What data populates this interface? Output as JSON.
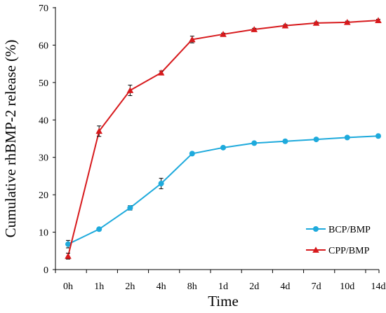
{
  "chart_data": {
    "type": "line",
    "title": "",
    "xlabel": "Time",
    "ylabel": "Cumulative rhBMP-2 release (%)",
    "ylim": [
      0,
      70
    ],
    "yticks": [
      "0",
      "10",
      "20",
      "30",
      "40",
      "50",
      "60",
      "70"
    ],
    "categories": [
      "0h",
      "1h",
      "2h",
      "4h",
      "8h",
      "1d",
      "2d",
      "4d",
      "7d",
      "10d",
      "14d"
    ],
    "grid": false,
    "legend_position": "bottom-right",
    "series": [
      {
        "name": "BCP/BMP",
        "color": "#1eaadc",
        "marker": "circle",
        "values": [
          6.8,
          10.8,
          16.5,
          23.0,
          31.0,
          32.6,
          33.8,
          34.3,
          34.8,
          35.3,
          35.7
        ],
        "errors": [
          1.0,
          0.3,
          0.6,
          1.4,
          0.3,
          0.3,
          0.3,
          0.3,
          0.3,
          0.3,
          0.3
        ]
      },
      {
        "name": "CPP/BMP",
        "color": "#d7191c",
        "marker": "triangle",
        "values": [
          3.6,
          37.0,
          47.9,
          52.6,
          61.5,
          62.9,
          64.2,
          65.2,
          65.9,
          66.1,
          66.6
        ],
        "errors": [
          0.8,
          1.4,
          1.4,
          0.5,
          0.9,
          0.3,
          0.3,
          0.3,
          0.3,
          0.3,
          0.3
        ]
      }
    ]
  }
}
